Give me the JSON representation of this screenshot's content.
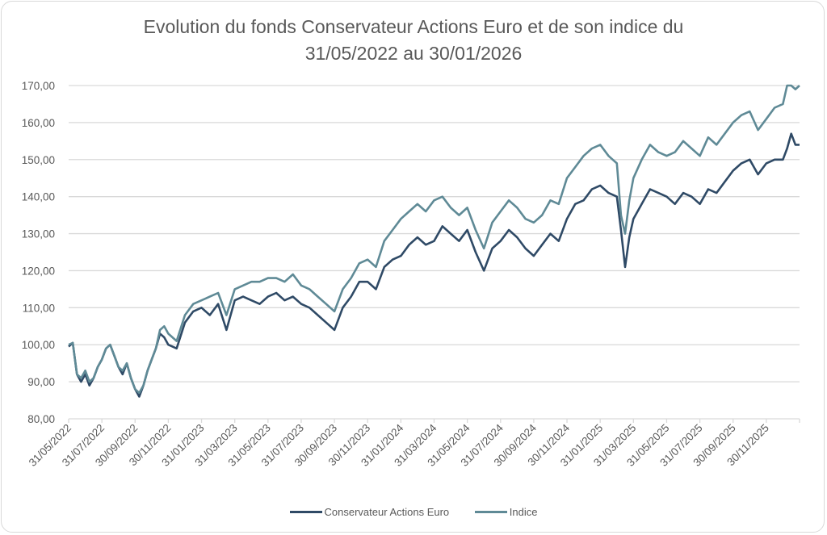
{
  "chart_data": {
    "type": "line",
    "title_lines": [
      "Evolution du fonds Conservateur Actions Euro et de son indice du",
      "31/05/2022 au 30/01/2026"
    ],
    "xlabel": "",
    "ylabel": "",
    "ylim": [
      80,
      170
    ],
    "yticks": [
      80,
      90,
      100,
      110,
      120,
      130,
      140,
      150,
      160,
      170
    ],
    "ytick_labels": [
      "80,00",
      "90,00",
      "100,00",
      "110,00",
      "120,00",
      "130,00",
      "140,00",
      "150,00",
      "160,00",
      "170,00"
    ],
    "x_range_months": [
      0,
      44
    ],
    "xticks_months": [
      0,
      2,
      4,
      6,
      8,
      10,
      12,
      14,
      16,
      18,
      20,
      22,
      24,
      26,
      28,
      30,
      32,
      34,
      36,
      38,
      40,
      42,
      44
    ],
    "xtick_labels": [
      "31/05/2022",
      "31/07/2022",
      "30/09/2022",
      "30/11/2022",
      "31/01/2023",
      "31/03/2023",
      "31/05/2023",
      "31/07/2023",
      "30/09/2023",
      "30/11/2023",
      "31/01/2024",
      "31/03/2024",
      "31/05/2024",
      "31/07/2024",
      "30/09/2024",
      "30/11/2024",
      "31/01/2025",
      "31/03/2025",
      "31/05/2025",
      "31/07/2025",
      "30/09/2025",
      "30/11/2025",
      ""
    ],
    "grid": true,
    "legend_position": "bottom",
    "x_months": [
      0,
      0.25,
      0.5,
      0.75,
      1,
      1.25,
      1.5,
      1.75,
      2,
      2.25,
      2.5,
      2.75,
      3,
      3.25,
      3.5,
      3.75,
      4,
      4.25,
      4.5,
      4.75,
      5,
      5.25,
      5.5,
      5.75,
      6,
      6.5,
      7,
      7.5,
      8,
      8.5,
      9,
      9.5,
      10,
      10.5,
      11,
      11.5,
      12,
      12.5,
      13,
      13.5,
      14,
      14.5,
      15,
      15.5,
      16,
      16.5,
      17,
      17.5,
      18,
      18.5,
      19,
      19.5,
      20,
      20.5,
      21,
      21.5,
      22,
      22.5,
      23,
      23.5,
      24,
      24.5,
      25,
      25.5,
      26,
      26.5,
      27,
      27.5,
      28,
      28.5,
      29,
      29.5,
      30,
      30.5,
      31,
      31.5,
      32,
      32.5,
      33,
      33.25,
      33.5,
      33.75,
      34,
      34.5,
      35,
      35.5,
      36,
      36.5,
      37,
      37.5,
      38,
      38.5,
      39,
      39.5,
      40,
      40.5,
      41,
      41.5,
      42,
      42.5,
      43,
      43.25,
      43.5,
      43.75,
      44
    ],
    "series": [
      {
        "name": "Conservateur Actions Euro",
        "color": "#2f4a66",
        "values": [
          99.5,
          100.5,
          92,
          90,
          92,
          89,
          91,
          94,
          96,
          99,
          100,
          97,
          94,
          92,
          95,
          91,
          88,
          86,
          89,
          93,
          96,
          99,
          103,
          102,
          100,
          99,
          106,
          109,
          110,
          108,
          111,
          104,
          112,
          113,
          112,
          111,
          113,
          114,
          112,
          113,
          111,
          110,
          108,
          106,
          104,
          110,
          113,
          117,
          117,
          115,
          121,
          123,
          124,
          127,
          129,
          127,
          128,
          132,
          130,
          128,
          131,
          125,
          120,
          126,
          128,
          131,
          129,
          126,
          124,
          127,
          130,
          128,
          134,
          138,
          139,
          142,
          143,
          141,
          140,
          131,
          121,
          129,
          134,
          138,
          142,
          141,
          140,
          138,
          141,
          140,
          138,
          142,
          141,
          144,
          147,
          149,
          150,
          146,
          149,
          150,
          150,
          153,
          157,
          154,
          154
        ]
      },
      {
        "name": "Indice",
        "color": "#5f8a96",
        "values": [
          100,
          100.5,
          92,
          91,
          93,
          90,
          91,
          94,
          96,
          99,
          100,
          97,
          94,
          93,
          95,
          91,
          88,
          87,
          89,
          93,
          96,
          99,
          104,
          105,
          103,
          101,
          108,
          111,
          112,
          113,
          114,
          108,
          115,
          116,
          117,
          117,
          118,
          118,
          117,
          119,
          116,
          115,
          113,
          111,
          109,
          115,
          118,
          122,
          123,
          121,
          128,
          131,
          134,
          136,
          138,
          136,
          139,
          140,
          137,
          135,
          137,
          131,
          126,
          133,
          136,
          139,
          137,
          134,
          133,
          135,
          139,
          138,
          145,
          148,
          151,
          153,
          154,
          151,
          149,
          135,
          130,
          139,
          145,
          150,
          154,
          152,
          151,
          152,
          155,
          153,
          151,
          156,
          154,
          157,
          160,
          162,
          163,
          158,
          161,
          164,
          165,
          170,
          170,
          169,
          170
        ]
      }
    ]
  },
  "legend": {
    "items": [
      {
        "label": "Conservateur Actions Euro",
        "color": "#2f4a66"
      },
      {
        "label": "Indice",
        "color": "#5f8a96"
      }
    ]
  }
}
